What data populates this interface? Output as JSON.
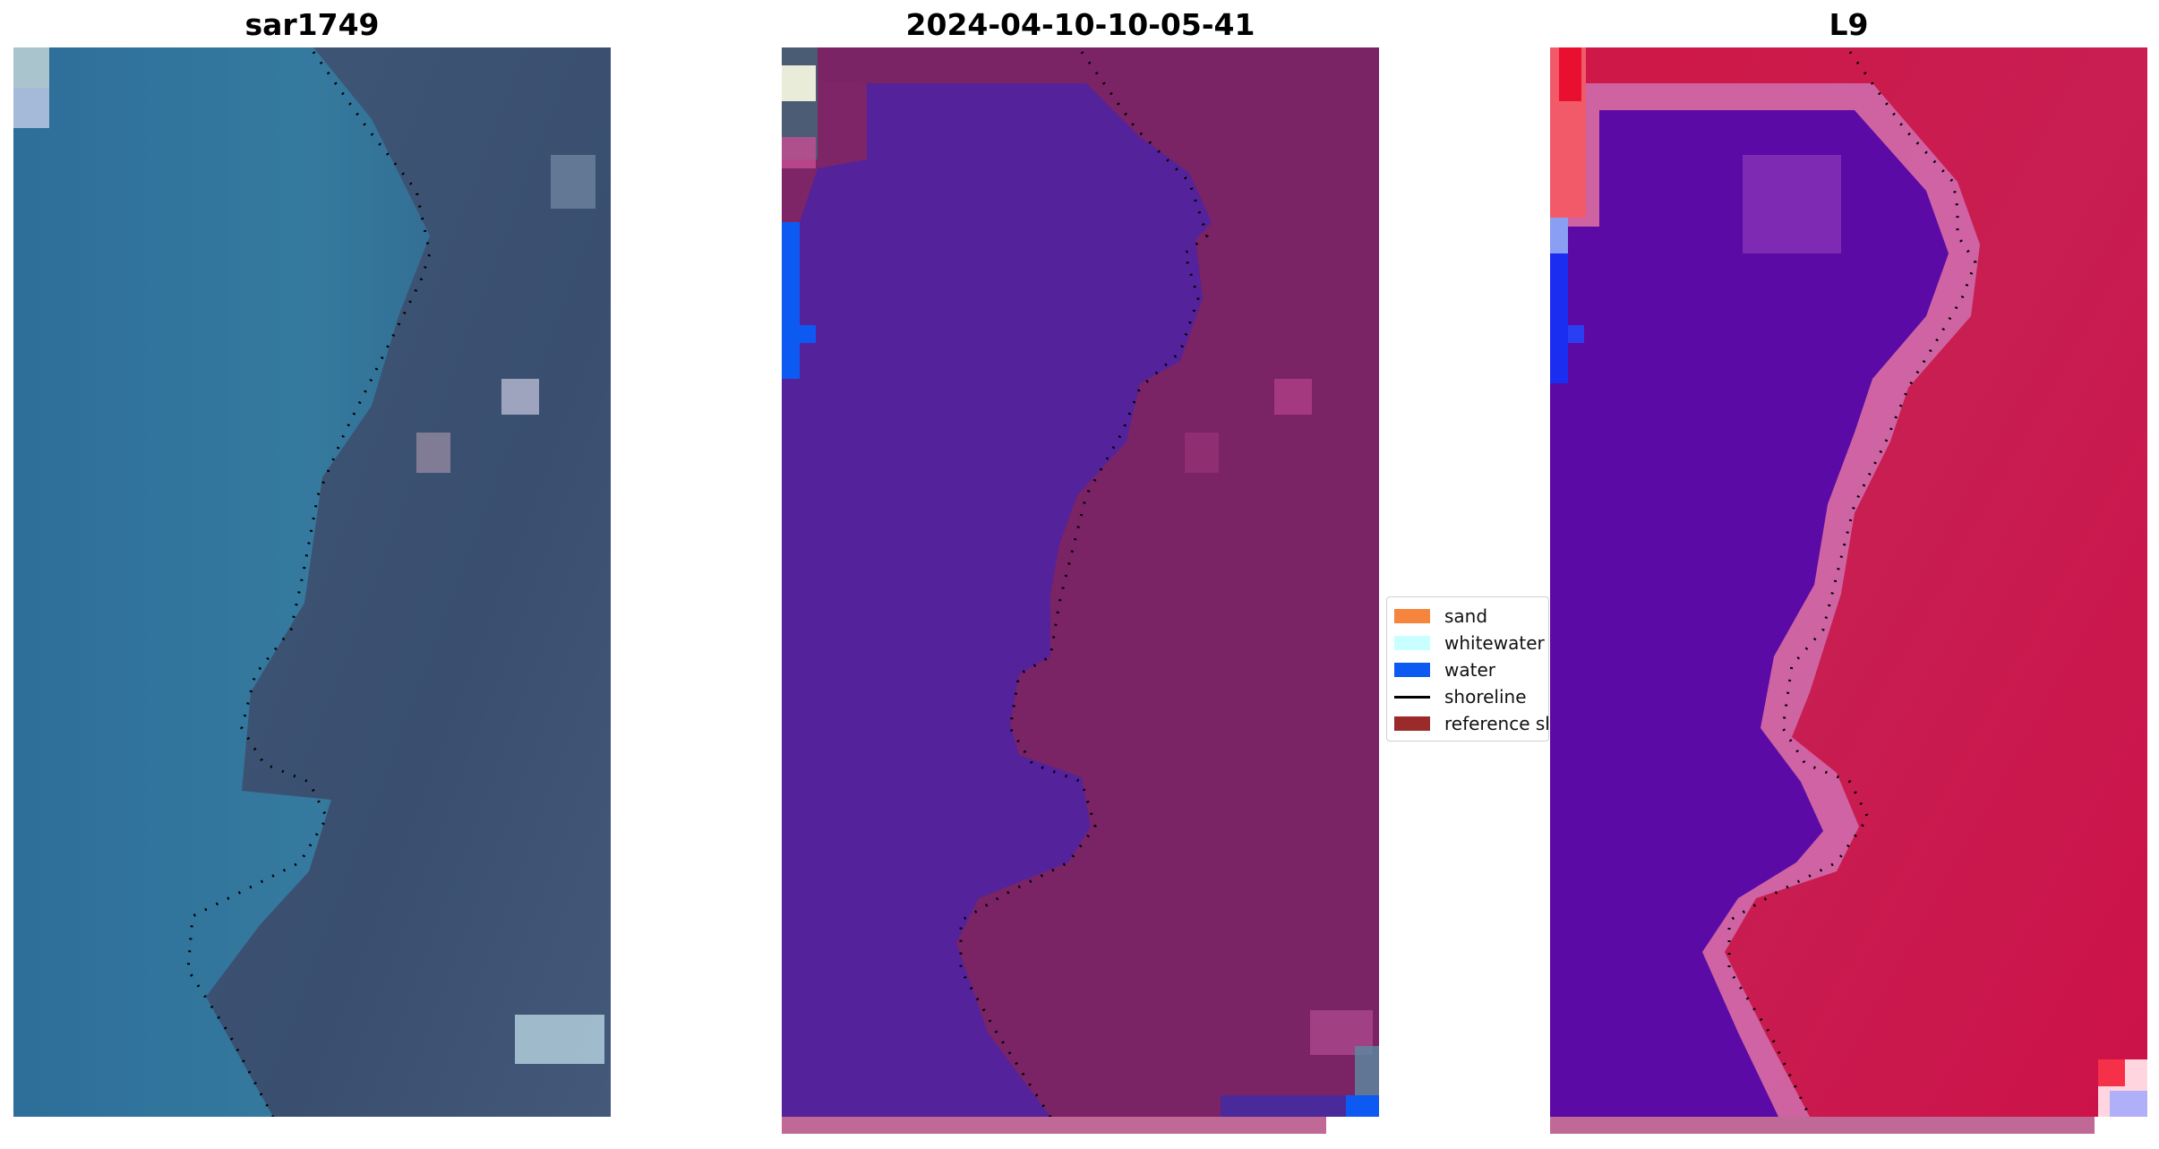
{
  "panels": [
    {
      "title": "sar1749"
    },
    {
      "title": "2024-04-10-10-05-41"
    },
    {
      "title": "L9"
    }
  ],
  "legend": {
    "items": [
      {
        "label": "sand",
        "color": "#f5843d"
      },
      {
        "label": "whitewater",
        "color": "#c8ffff"
      },
      {
        "label": "water",
        "color": "#0d5af2"
      },
      {
        "label": "shoreline",
        "color": "#000000"
      },
      {
        "label": "reference shoreline",
        "color": "#9b2a2a"
      }
    ]
  },
  "colors": {
    "water_mask": "#54239b",
    "land_overlay": "#7a2365",
    "rgb_water": "#2e6c98",
    "rgb_land": "#3b5373",
    "false_color_water": "#5b0aa6",
    "false_color_land": "#c8144a",
    "strip": "#c06896"
  }
}
